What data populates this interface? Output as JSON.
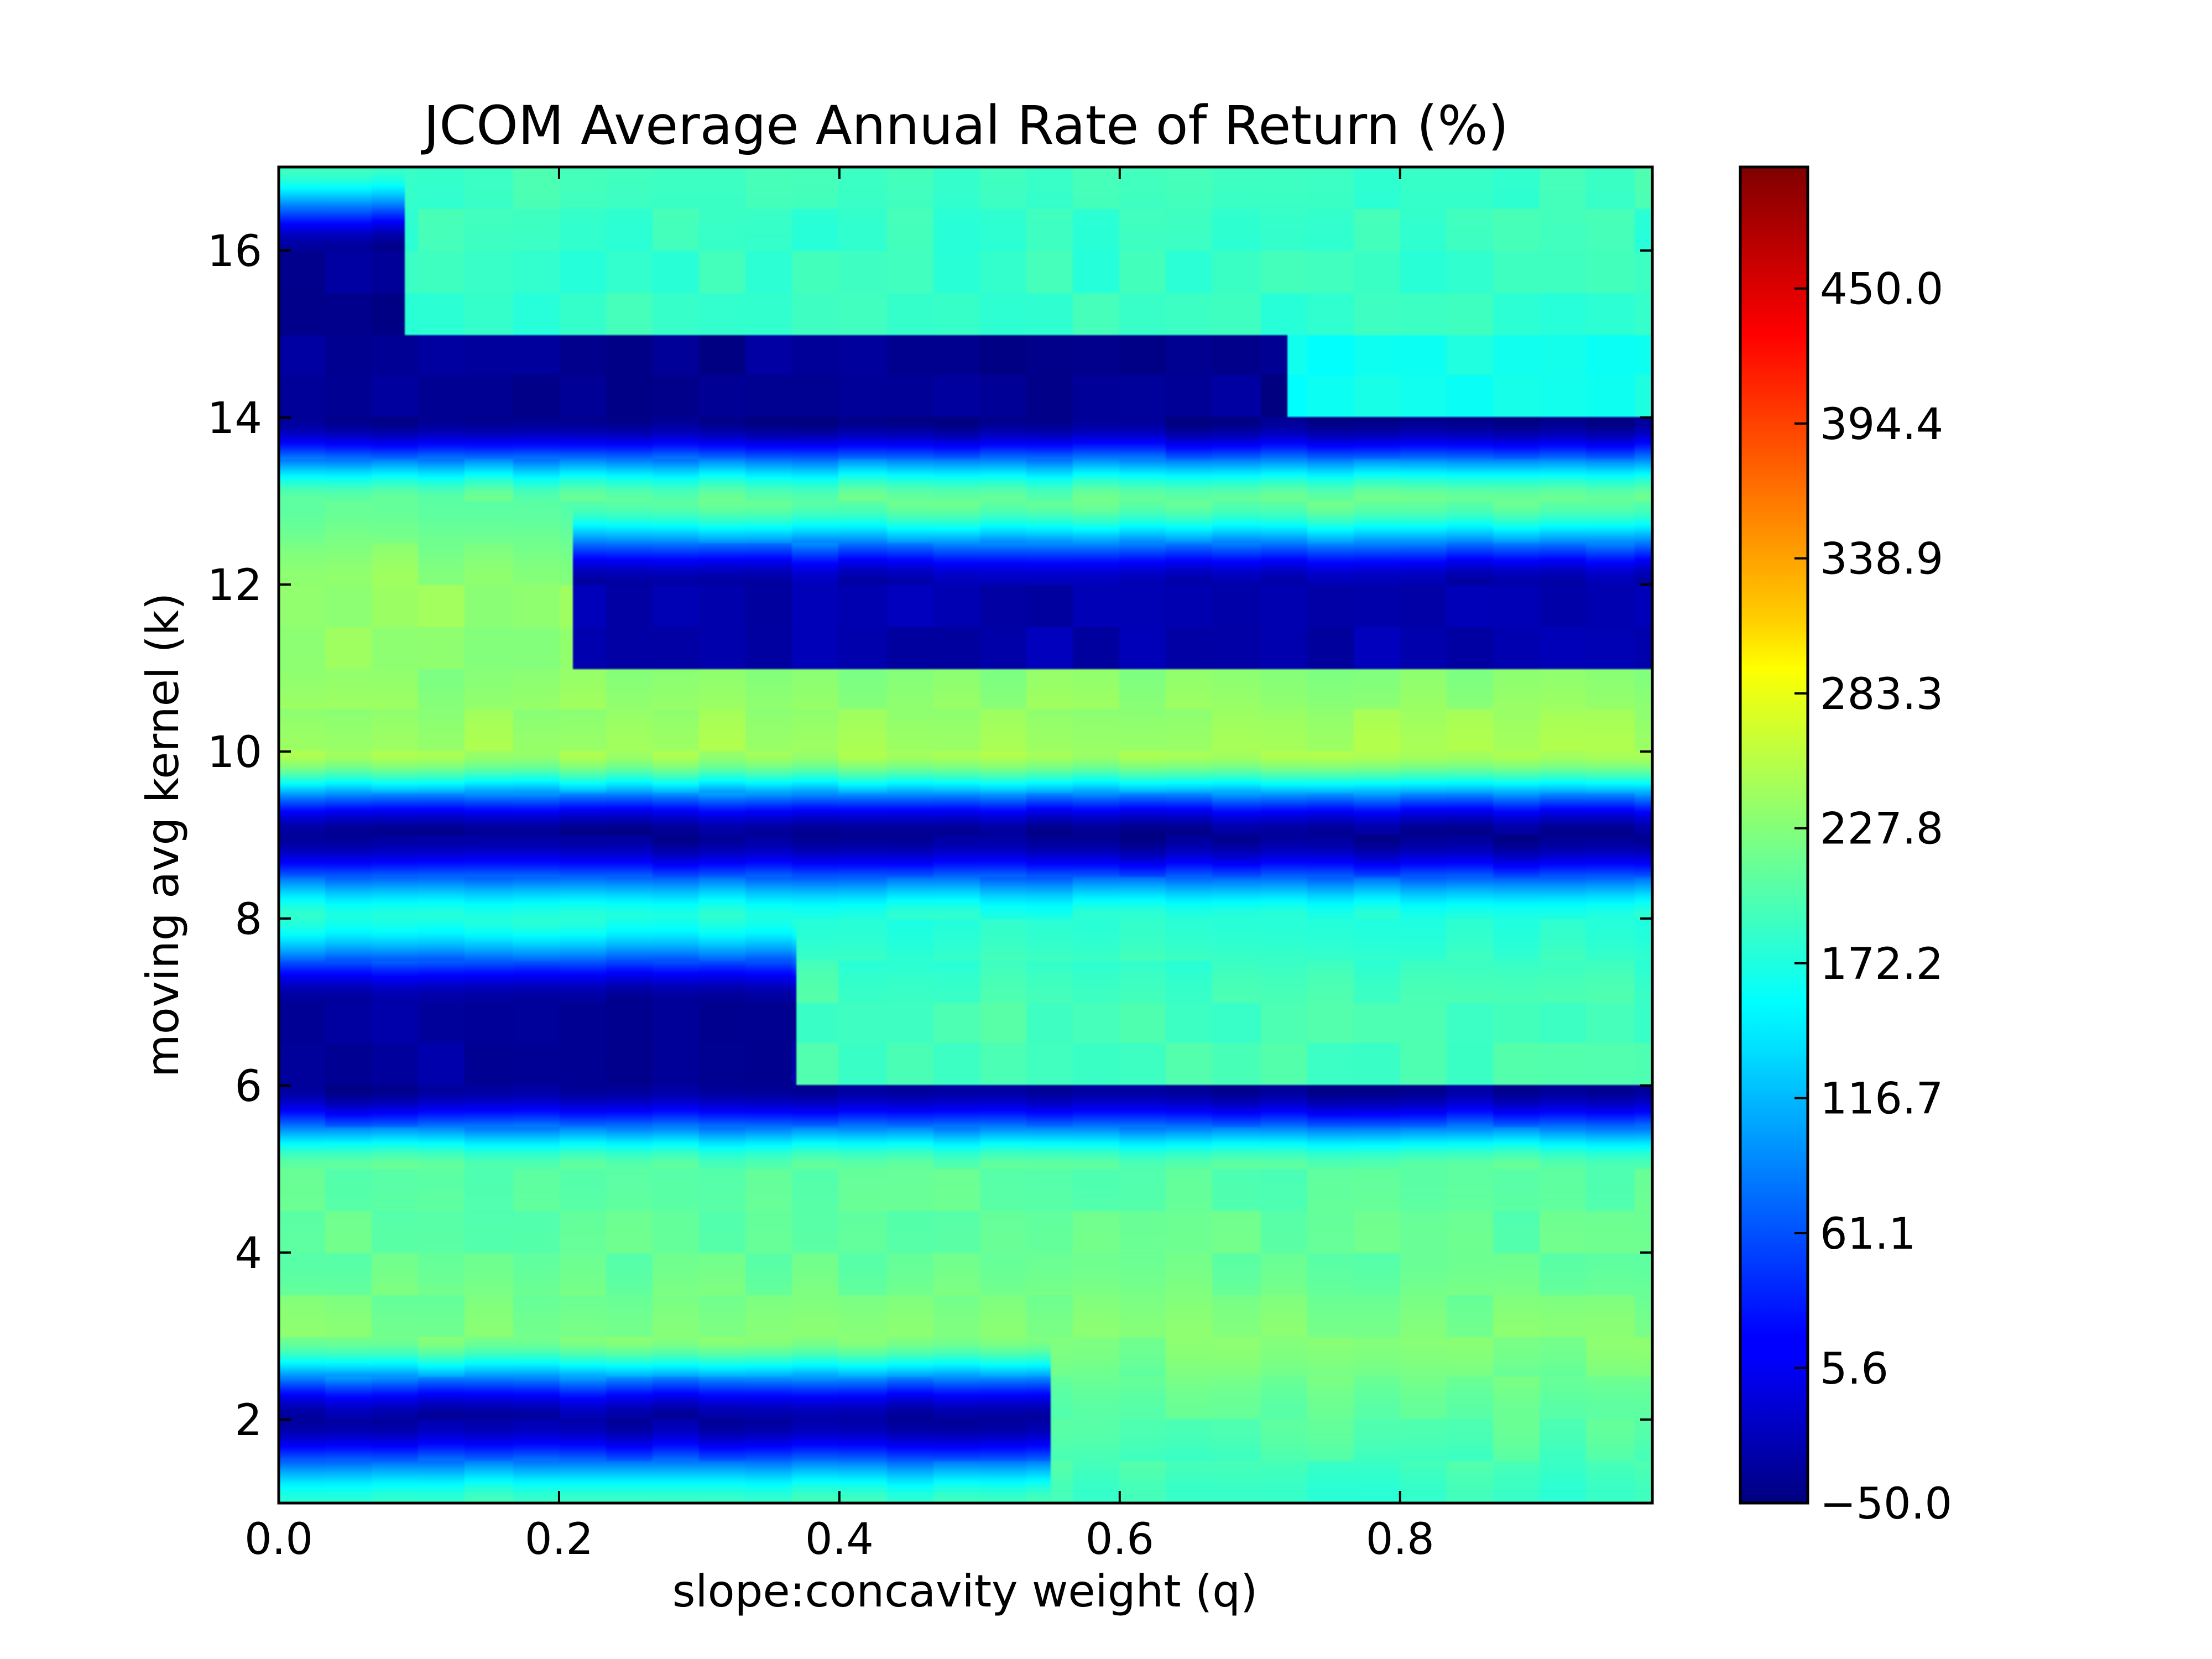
{
  "chart_data": {
    "type": "heatmap",
    "title": "JCOM Average Annual Rate of Return (%)",
    "xlabel": "slope:concavity weight (q)",
    "ylabel": "moving avg kernel (k)",
    "xlim": [
      0,
      0.98
    ],
    "ylim": [
      1,
      17
    ],
    "x_ticks": [
      "0.0",
      "0.2",
      "0.4",
      "0.6",
      "0.8"
    ],
    "x_tick_values": [
      0,
      0.2,
      0.4,
      0.6,
      0.8
    ],
    "y_ticks": [
      "2",
      "4",
      "6",
      "8",
      "10",
      "12",
      "14",
      "16"
    ],
    "y_tick_values": [
      2,
      4,
      6,
      8,
      10,
      12,
      14,
      16
    ],
    "colorbar": {
      "min": -50.0,
      "max": 500.0,
      "ticks": [
        "-50.0",
        "5.6",
        "61.1",
        "116.7",
        "172.2",
        "227.8",
        "283.3",
        "338.9",
        "394.4",
        "450.0"
      ],
      "tick_values": [
        -50.0,
        5.6,
        61.1,
        116.7,
        172.2,
        227.8,
        283.3,
        338.9,
        394.4,
        450.0
      ],
      "colormap": "jet"
    },
    "grid": false,
    "k_values": [
      1,
      2,
      3,
      4,
      5,
      6,
      7,
      8,
      9,
      10,
      11,
      12,
      13,
      14,
      15,
      16,
      17
    ],
    "base_by_k": [
      185,
      -5,
      225,
      210,
      205,
      -40,
      200,
      175,
      -40,
      245,
      230,
      -15,
      210,
      -45,
      200,
      195,
      190
    ],
    "band_segments": [
      {
        "k": 2,
        "q_end": 0.55,
        "left_value": -30,
        "right_value": 205
      },
      {
        "k": 6.5,
        "q_end": 0.37,
        "left_value": -35,
        "right_value": 195
      },
      {
        "k": 11.5,
        "q_end": 0.21,
        "left_value": 235,
        "right_value": -25
      },
      {
        "k": 14.5,
        "q_end": 0.72,
        "left_value": -40,
        "right_value": 165
      },
      {
        "k": 15.5,
        "q_end": 0.09,
        "left_value": -40,
        "right_value": 185
      }
    ]
  }
}
